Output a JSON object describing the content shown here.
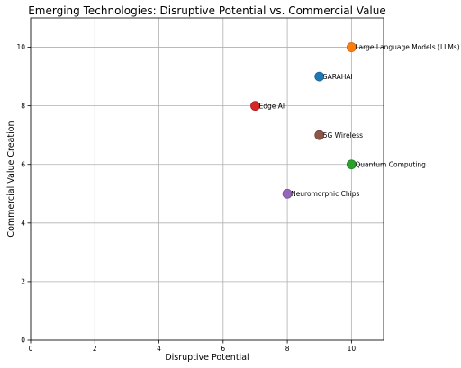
{
  "chart_data": {
    "type": "scatter",
    "title": "Emerging Technologies: Disruptive Potential vs. Commercial Value",
    "xlabel": "Disruptive Potential",
    "ylabel": "Commercial Value Creation",
    "xlim": [
      0,
      11
    ],
    "ylim": [
      0,
      11
    ],
    "xticks": [
      0,
      2,
      4,
      6,
      8,
      10
    ],
    "yticks": [
      0,
      2,
      4,
      6,
      8,
      10
    ],
    "grid": true,
    "points": [
      {
        "label": "SARAHAI",
        "x": 9,
        "y": 9,
        "color": "#1f77b4",
        "edge": "#1a5f91"
      },
      {
        "label": "Large Language Models (LLMs)",
        "x": 10,
        "y": 10,
        "color": "#ff7f0e",
        "edge": "#cc650b"
      },
      {
        "label": "Quantum Computing",
        "x": 10,
        "y": 6,
        "color": "#2ca02c",
        "edge": "#238023"
      },
      {
        "label": "Edge AI",
        "x": 7,
        "y": 8,
        "color": "#d62728",
        "edge": "#ab1f20"
      },
      {
        "label": "Neuromorphic Chips",
        "x": 8,
        "y": 5,
        "color": "#9467bd",
        "edge": "#765297"
      },
      {
        "label": "5G Wireless",
        "x": 9,
        "y": 7,
        "color": "#8c564b",
        "edge": "#70453c"
      }
    ]
  }
}
